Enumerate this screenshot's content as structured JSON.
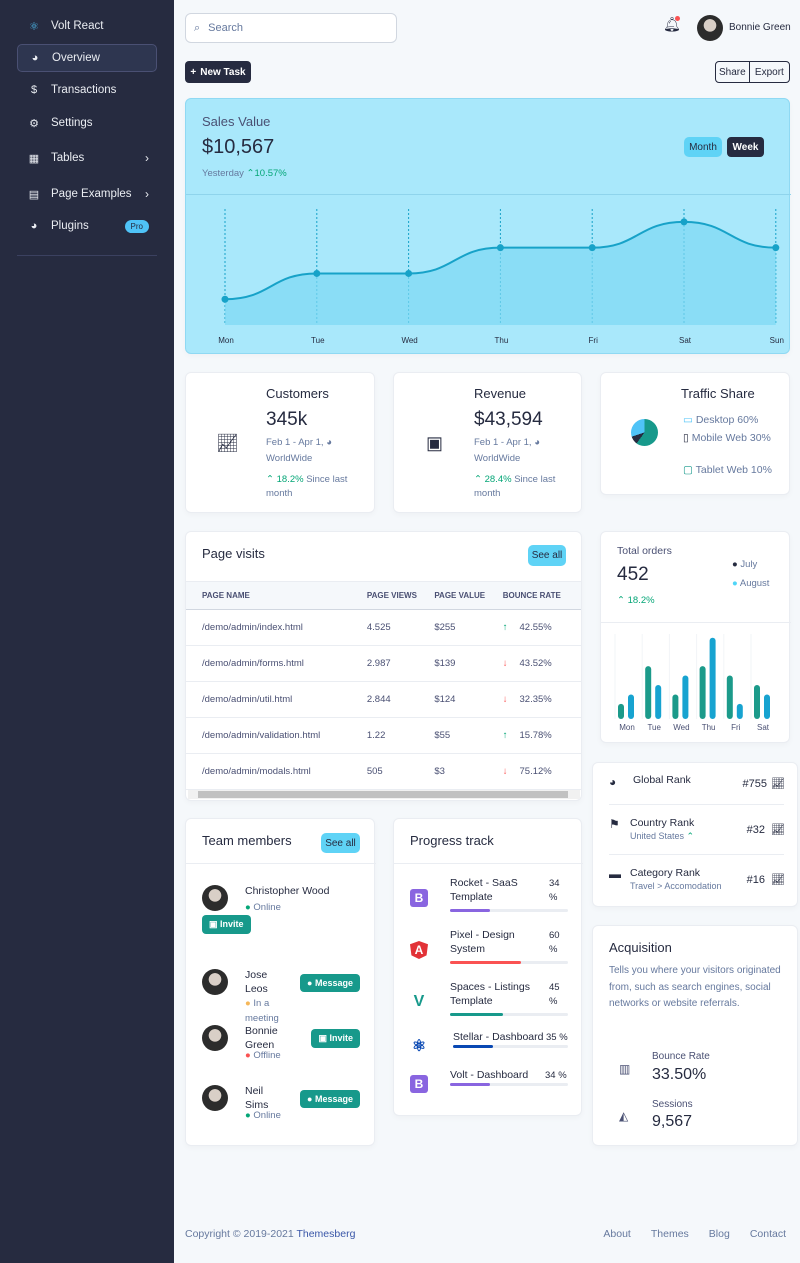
{
  "sidebar": {
    "brand": "Volt React",
    "items": [
      {
        "label": "Overview",
        "icon": "pie-icon"
      },
      {
        "label": "Transactions",
        "icon": "hand-coin-icon"
      },
      {
        "label": "Settings",
        "icon": "gear-icon"
      },
      {
        "label": "Tables",
        "icon": "table-icon"
      },
      {
        "label": "Page Examples",
        "icon": "file-icon"
      },
      {
        "label": "Plugins",
        "icon": "pie-icon",
        "badge": "Pro"
      }
    ]
  },
  "topbar": {
    "search_placeholder": "Search",
    "user": "Bonnie Green"
  },
  "actions": {
    "new_task": "New Task",
    "share": "Share",
    "export": "Export"
  },
  "sales": {
    "title": "Sales Value",
    "value": "$10,567",
    "period": "Yesterday",
    "change": "10.57%",
    "month": "Month",
    "week": "Week"
  },
  "customers": {
    "title": "Customers",
    "value": "345k",
    "range": "Feb 1 - Apr 1,",
    "region": "WorldWide",
    "change": "18.2%",
    "since": "Since last month"
  },
  "revenue": {
    "title": "Revenue",
    "value": "$43,594",
    "range": "Feb 1 - Apr 1,",
    "region": "WorldWide",
    "change": "28.4%",
    "since": "Since last month"
  },
  "traffic": {
    "title": "Traffic Share",
    "items": [
      "Desktop 60%",
      "Mobile Web 30%",
      "Tablet Web 10%"
    ]
  },
  "page_visits": {
    "title": "Page visits",
    "see_all": "See all",
    "headers": [
      "Page name",
      "Page Views",
      "Page Value",
      "Bounce rate"
    ],
    "rows": [
      [
        "/demo/admin/index.html",
        "4.525",
        "$255",
        "42.55%",
        "up"
      ],
      [
        "/demo/admin/forms.html",
        "2.987",
        "$139",
        "43.52%",
        "down"
      ],
      [
        "/demo/admin/util.html",
        "2.844",
        "$124",
        "32.35%",
        "down"
      ],
      [
        "/demo/admin/validation.html",
        "1.22",
        "$55",
        "15.78%",
        "up"
      ],
      [
        "/demo/admin/modals.html",
        "505",
        "$3",
        "75.12%",
        "down"
      ]
    ]
  },
  "orders": {
    "title": "Total orders",
    "value": "452",
    "change": "18.2%",
    "legend": [
      "July",
      "August"
    ]
  },
  "ranks": [
    {
      "label": "Global Rank",
      "sub": "",
      "value": "#755"
    },
    {
      "label": "Country Rank",
      "sub": "United States",
      "value": "#32"
    },
    {
      "label": "Category Rank",
      "sub": "Travel > Accomodation",
      "value": "#16"
    }
  ],
  "team": {
    "title": "Team members",
    "see_all": "See all",
    "members": [
      {
        "name": "Christopher Wood",
        "status": "Online",
        "action": "Invite"
      },
      {
        "name": "Jose Leos",
        "status": "In a meeting",
        "action": "Message"
      },
      {
        "name": "Bonnie Green",
        "status": "Offline",
        "action": "Invite"
      },
      {
        "name": "Neil Sims",
        "status": "Online",
        "action": "Message"
      }
    ]
  },
  "progress": {
    "title": "Progress track",
    "items": [
      {
        "name": "Rocket - SaaS Template",
        "pct": 34,
        "label": "34 %",
        "color": "#8965e0"
      },
      {
        "name": "Pixel - Design System",
        "pct": 60,
        "label": "60 %",
        "color": "#fa5252"
      },
      {
        "name": "Spaces - Listings Template",
        "pct": 45,
        "label": "45 %",
        "color": "#17998b"
      },
      {
        "name": "Stellar - Dashboard",
        "pct": 35,
        "label": "35 %",
        "color": "#0948b3"
      },
      {
        "name": "Volt - Dashboard",
        "pct": 34,
        "label": "34 %",
        "color": "#8965e0"
      }
    ]
  },
  "acquisition": {
    "title": "Acquisition",
    "desc": "Tells you where your visitors originated from, such as search engines, social networks or website referrals.",
    "bounce_label": "Bounce Rate",
    "bounce": "33.50%",
    "sessions_label": "Sessions",
    "sessions": "9,567"
  },
  "footer": {
    "copyright": "Copyright © 2019-2021",
    "brand": "Themesberg",
    "links": [
      "About",
      "Themes",
      "Blog",
      "Contact"
    ]
  },
  "chart_data": [
    {
      "type": "area",
      "title": "Sales Value",
      "categories": [
        "Mon",
        "Tue",
        "Wed",
        "Thu",
        "Fri",
        "Sat",
        "Sun"
      ],
      "values": [
        1,
        2,
        2,
        3,
        3,
        4,
        3
      ],
      "ylim": [
        0,
        4.5
      ]
    },
    {
      "type": "bar",
      "title": "Total orders",
      "categories": [
        "Mon",
        "Tue",
        "Wed",
        "Thu",
        "Fri",
        "Sat"
      ],
      "series": [
        {
          "name": "July",
          "values": [
            1.6,
            5.6,
            2.6,
            5.6,
            4.6,
            3.6
          ]
        },
        {
          "name": "August",
          "values": [
            2.6,
            3.6,
            4.6,
            8.6,
            1.6,
            2.6
          ]
        }
      ],
      "ylim": [
        0,
        9
      ]
    }
  ]
}
